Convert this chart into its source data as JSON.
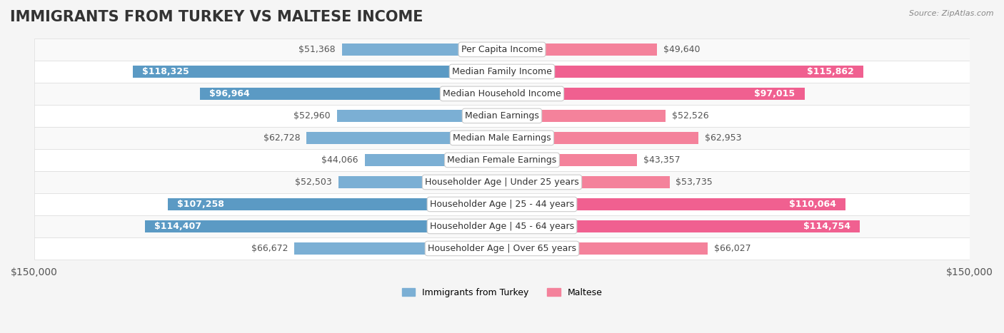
{
  "title": "IMMIGRANTS FROM TURKEY VS MALTESE INCOME",
  "source": "Source: ZipAtlas.com",
  "categories": [
    "Per Capita Income",
    "Median Family Income",
    "Median Household Income",
    "Median Earnings",
    "Median Male Earnings",
    "Median Female Earnings",
    "Householder Age | Under 25 years",
    "Householder Age | 25 - 44 years",
    "Householder Age | 45 - 64 years",
    "Householder Age | Over 65 years"
  ],
  "turkey_values": [
    51368,
    118325,
    96964,
    52960,
    62728,
    44066,
    52503,
    107258,
    114407,
    66672
  ],
  "maltese_values": [
    49640,
    115862,
    97015,
    52526,
    62953,
    43357,
    53735,
    110064,
    114754,
    66027
  ],
  "turkey_labels": [
    "$51,368",
    "$118,325",
    "$96,964",
    "$52,960",
    "$62,728",
    "$44,066",
    "$52,503",
    "$107,258",
    "$114,407",
    "$66,672"
  ],
  "maltese_labels": [
    "$49,640",
    "$115,862",
    "$97,015",
    "$52,526",
    "$62,953",
    "$43,357",
    "$53,735",
    "$110,064",
    "$114,754",
    "$66,027"
  ],
  "turkey_color": "#7BAFD4",
  "maltese_color": "#F4829B",
  "turkey_color_strong": "#5B9AC4",
  "maltese_color_strong": "#F06090",
  "max_value": 150000,
  "bar_height": 0.55,
  "background_color": "#f5f5f5",
  "row_bg_color": "#f9f9f9",
  "row_alt_bg_color": "#ffffff",
  "label_color_inside": "#ffffff",
  "label_color_outside": "#555555",
  "inside_threshold": 70000,
  "title_fontsize": 15,
  "tick_fontsize": 10,
  "label_fontsize": 9,
  "category_fontsize": 9
}
